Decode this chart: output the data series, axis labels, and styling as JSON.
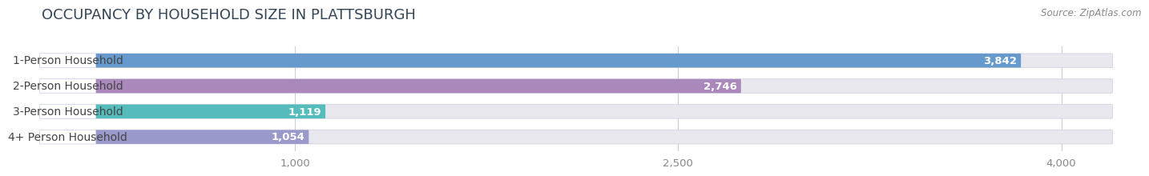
{
  "title": "OCCUPANCY BY HOUSEHOLD SIZE IN PLATTSBURGH",
  "source": "Source: ZipAtlas.com",
  "categories": [
    "1-Person Household",
    "2-Person Household",
    "3-Person Household",
    "4+ Person Household"
  ],
  "values": [
    3842,
    2746,
    1119,
    1054
  ],
  "bar_colors": [
    "#6699cc",
    "#aa88bb",
    "#55bbbb",
    "#9999cc"
  ],
  "page_bg_color": "#ffffff",
  "bar_track_color": "#e8e8ee",
  "label_bg_color": "#ffffff",
  "xlim": [
    0,
    4300
  ],
  "data_max": 4200,
  "xticks": [
    1000,
    2500,
    4000
  ],
  "title_fontsize": 13,
  "label_fontsize": 10,
  "value_fontsize": 9.5,
  "source_fontsize": 8.5
}
